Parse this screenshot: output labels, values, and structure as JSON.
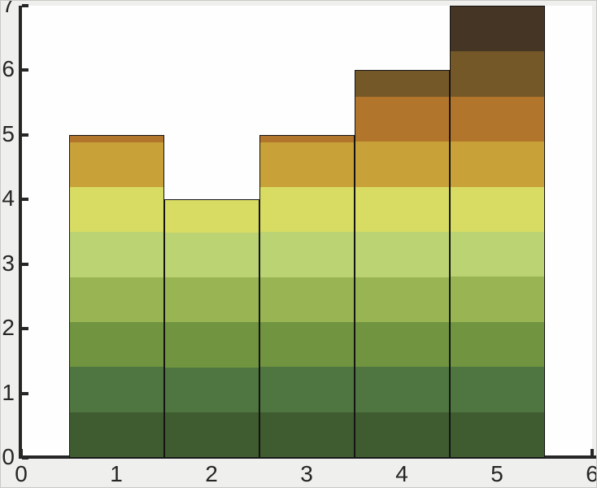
{
  "figure": {
    "background": "#efefed",
    "plot_background": "#fefefe",
    "axis_color": "#262626",
    "tick_label_color": "#262626",
    "bar_outline_color": "#141414"
  },
  "chart_data": {
    "type": "bar",
    "subtype": "matlab-style histogram with horizontal colormap bands",
    "title": "",
    "xlabel": "",
    "ylabel": "",
    "x": [
      1,
      2,
      3,
      4,
      5
    ],
    "values": [
      5,
      4,
      5,
      6,
      7
    ],
    "bar_width": 1,
    "xlim": [
      0,
      6
    ],
    "ylim": [
      0,
      7
    ],
    "xticks": [
      "0",
      "1",
      "2",
      "3",
      "4",
      "5",
      "6"
    ],
    "yticks": [
      "0",
      "1",
      "2",
      "3",
      "4",
      "5",
      "6",
      "7"
    ],
    "grid": false,
    "legend_position": "none",
    "band_interval": 0.7,
    "band_colors_bottom_to_top": [
      "#3f5b30",
      "#4f7541",
      "#709440",
      "#99b553",
      "#bbd373",
      "#d9dc62",
      "#c8a139",
      "#b2752c",
      "#755827",
      "#453525"
    ]
  }
}
